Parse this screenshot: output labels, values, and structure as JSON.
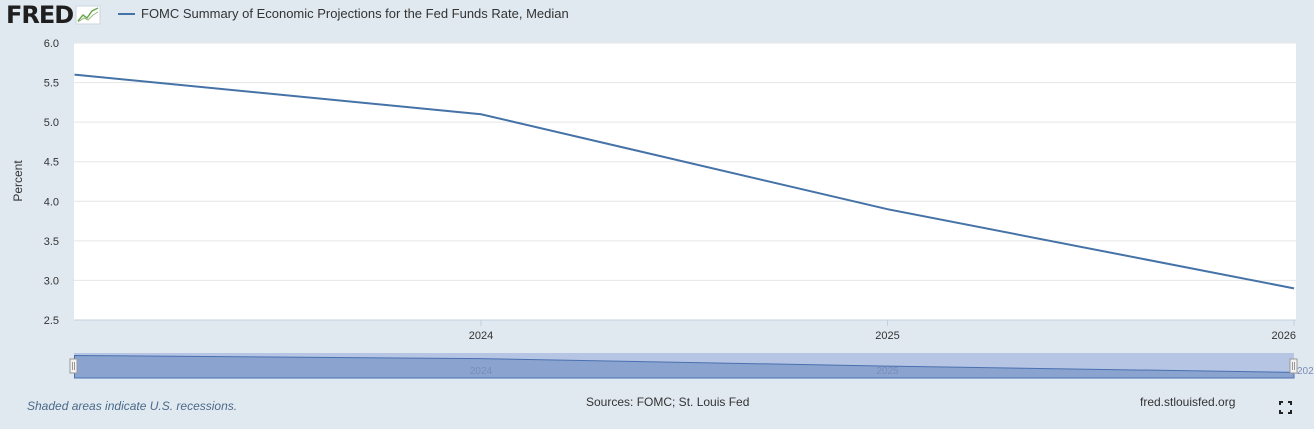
{
  "logo": {
    "text": "FRED"
  },
  "legend": {
    "label": "FOMC Summary of Economic Projections for the Fed Funds Rate, Median"
  },
  "colors": {
    "series": "#4572a7",
    "navigator_fill": "#8aa4cf",
    "navigator_bg": "#b6c5e4",
    "background": "#e1e9f0"
  },
  "footer": {
    "recession_note": "Shaded areas indicate U.S. recessions.",
    "sources": "Sources: FOMC; St. Louis Fed",
    "site": "fred.stlouisfed.org"
  },
  "icons": {
    "logo_graph": "line-graph-icon",
    "fullscreen": "fullscreen-icon"
  },
  "chart_data": {
    "type": "line",
    "ylabel": "Percent",
    "xlabel": "",
    "ylim": [
      2.5,
      6.0
    ],
    "yticks": [
      "2.5",
      "3.0",
      "3.5",
      "4.0",
      "4.5",
      "5.0",
      "5.5",
      "6.0"
    ],
    "xticks": [
      "2024",
      "2025",
      "2026"
    ],
    "navigator_labels": [
      "2024",
      "2025",
      "202"
    ],
    "grid": true,
    "series": [
      {
        "name": "FOMC Summary of Economic Projections for the Fed Funds Rate, Median",
        "x": [
          "2023",
          "2024",
          "2025",
          "2026"
        ],
        "values": [
          5.6,
          5.1,
          3.9,
          2.9
        ]
      }
    ]
  }
}
